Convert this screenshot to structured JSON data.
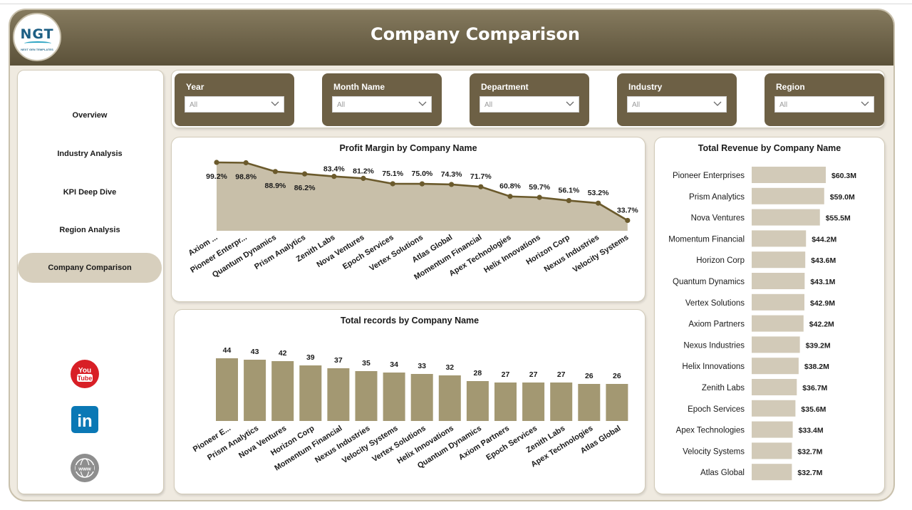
{
  "header": {
    "title": "Company Comparison",
    "logo_text": "NGT",
    "logo_subtext": "NEXT GEN TEMPLATES"
  },
  "nav": {
    "items": [
      {
        "label": "Overview",
        "active": false
      },
      {
        "label": "Industry Analysis",
        "active": false
      },
      {
        "label": "KPI Deep Dive",
        "active": false
      },
      {
        "label": "Region Analysis",
        "active": false
      },
      {
        "label": "Company Comparison",
        "active": true
      }
    ],
    "social": [
      {
        "icon": "youtube-icon",
        "text": "You\nTube"
      },
      {
        "icon": "linkedin-icon",
        "text": "in"
      },
      {
        "icon": "globe-icon",
        "text": "www"
      }
    ]
  },
  "filters": [
    {
      "label": "Year",
      "value": "All"
    },
    {
      "label": "Month Name",
      "value": "All"
    },
    {
      "label": "Department",
      "value": "All"
    },
    {
      "label": "Industry",
      "value": "All"
    },
    {
      "label": "Region",
      "value": "All"
    }
  ],
  "colors": {
    "accent": "#6d6045",
    "header_dark": "#5b5139",
    "area_fill": "#c8bfa9",
    "line": "#6b5a2c",
    "bar_records": "#a39872",
    "bar_revenue": "#d2cab8",
    "nav_active": "#d7cfbd"
  },
  "chart_data": [
    {
      "type": "area",
      "title": "Profit Margin by Company Name",
      "categories": [
        "Axiom ...",
        "Pioneer Enterpr...",
        "Quantum Dynamics",
        "Prism Analytics",
        "Zenith Labs",
        "Nova Ventures",
        "Epoch Services",
        "Vertex Solutions",
        "Atlas Global",
        "Momentum Financial",
        "Apex Technologies",
        "Helix Innovations",
        "Horizon Corp",
        "Nexus Industries",
        "Velocity Systems"
      ],
      "values": [
        99.2,
        98.8,
        88.9,
        86.2,
        83.4,
        81.2,
        75.1,
        75.0,
        74.3,
        71.7,
        60.8,
        59.7,
        56.1,
        53.2,
        33.7
      ],
      "data_labels": [
        "99.2%",
        "98.8%",
        "88.9%",
        "86.2%",
        "83.4%",
        "81.2%",
        "75.1%",
        "75.0%",
        "74.3%",
        "71.7%",
        "60.8%",
        "59.7%",
        "56.1%",
        "53.2%",
        "33.7%"
      ],
      "unit": "%",
      "grid": false,
      "legend": "none"
    },
    {
      "type": "bar",
      "title": "Total records by Company Name",
      "categories": [
        "Pioneer E...",
        "Prism Analytics",
        "Nova Ventures",
        "Horizon Corp",
        "Momentum Financial",
        "Nexus Industries",
        "Velocity Systems",
        "Vertex Solutions",
        "Helix Innovations",
        "Quantum Dynamics",
        "Axiom Partners",
        "Epoch Services",
        "Zenith Labs",
        "Apex Technologies",
        "Atlas Global"
      ],
      "values": [
        44,
        43,
        42,
        39,
        37,
        35,
        34,
        33,
        32,
        28,
        27,
        27,
        27,
        26,
        26
      ],
      "grid": false,
      "legend": "none"
    },
    {
      "type": "bar",
      "orientation": "horizontal",
      "title": "Total Revenue by Company Name",
      "categories": [
        "Pioneer Enterprises",
        "Prism Analytics",
        "Nova Ventures",
        "Momentum Financial",
        "Horizon Corp",
        "Quantum Dynamics",
        "Vertex Solutions",
        "Axiom Partners",
        "Nexus Industries",
        "Helix Innovations",
        "Zenith Labs",
        "Epoch Services",
        "Apex Technologies",
        "Velocity Systems",
        "Atlas Global"
      ],
      "values": [
        60.3,
        59.0,
        55.5,
        44.2,
        43.6,
        43.1,
        42.9,
        42.2,
        39.2,
        38.2,
        36.7,
        35.6,
        33.4,
        32.7,
        32.7
      ],
      "data_labels": [
        "$60.3M",
        "$59.0M",
        "$55.5M",
        "$44.2M",
        "$43.6M",
        "$43.1M",
        "$42.9M",
        "$42.2M",
        "$39.2M",
        "$38.2M",
        "$36.7M",
        "$35.6M",
        "$33.4M",
        "$32.7M",
        "$32.7M"
      ],
      "unit": "$M",
      "grid": false,
      "legend": "none"
    }
  ]
}
